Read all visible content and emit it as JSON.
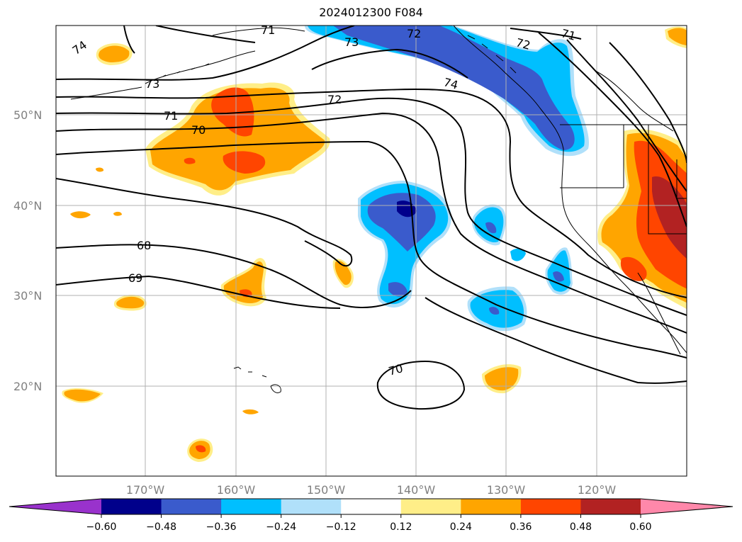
{
  "title": "2024012300 F084",
  "map": {
    "lat_labels": [
      "50°N",
      "40°N",
      "30°N",
      "20°N"
    ],
    "lon_labels": [
      "170°W",
      "160°W",
      "150°W",
      "140°W",
      "130°W",
      "120°W"
    ],
    "contour_labels": [
      "74",
      "73",
      "72",
      "71",
      "70",
      "68",
      "69",
      "73",
      "72",
      "72",
      "71",
      "74",
      "70",
      "71"
    ]
  },
  "colorbar": {
    "ticks": [
      "−0.60",
      "−0.48",
      "−0.36",
      "−0.24",
      "−0.12",
      "0.12",
      "0.24",
      "0.36",
      "0.48",
      "0.60"
    ],
    "colors": [
      "#9932cc",
      "#00008b",
      "#3a5bcc",
      "#00bfff",
      "#b0e0fa",
      "#ffffff",
      "#ffee88",
      "#ffa500",
      "#ff4500",
      "#b22222",
      "#ff88aa"
    ]
  }
}
